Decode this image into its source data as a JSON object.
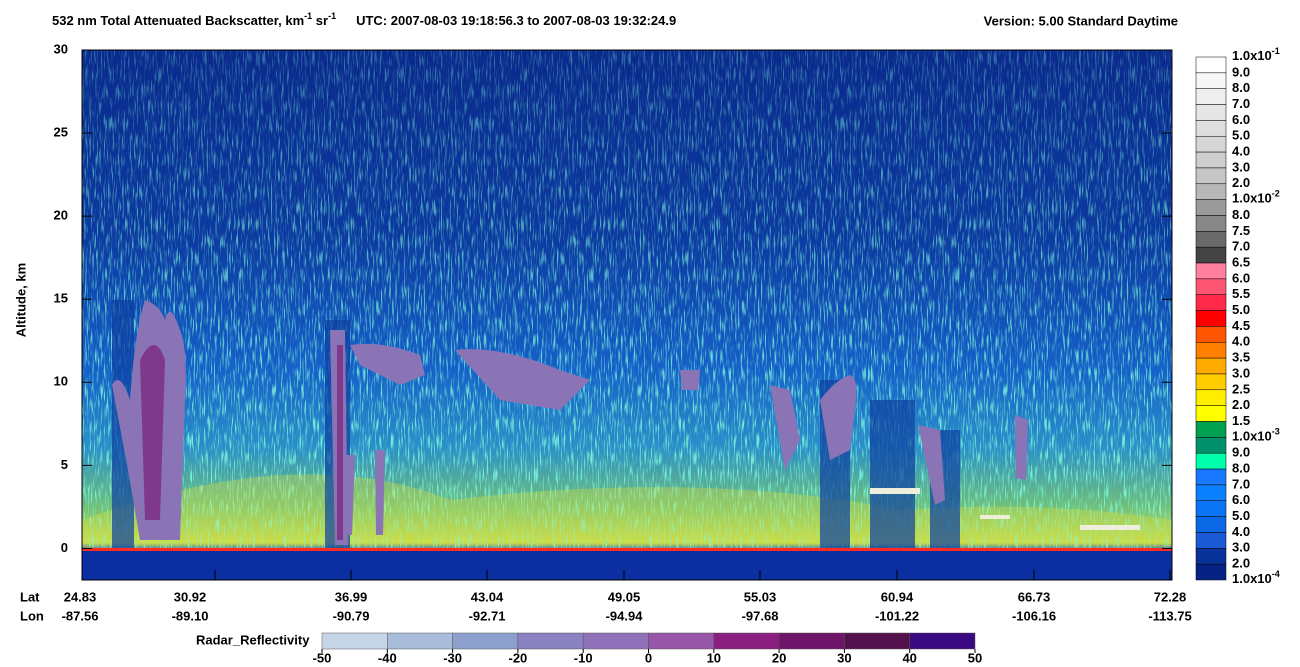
{
  "chart_data": {
    "type": "curtain",
    "title_parts": [
      "532 nm Total Attenuated Backscatter, km",
      "-1",
      " sr",
      "-1"
    ],
    "time_range": "UTC:  2007-08-03 19:18:56.3  to  2007-08-03 19:32:24.9",
    "version": "Version: 5.00  Standard  Daytime",
    "ylabel": "Altitude, km",
    "ylim": [
      -1.9,
      30
    ],
    "yticks": [
      0,
      5,
      10,
      15,
      20,
      25,
      30
    ],
    "row_names": [
      "Lat",
      "Lon"
    ],
    "lat": [
      "24.83",
      "30.92",
      "36.99",
      "43.04",
      "49.05",
      "55.03",
      "60.94",
      "66.73",
      "72.28"
    ],
    "lon": [
      "-87.56",
      "-89.10",
      "-90.79",
      "-92.71",
      "-94.94",
      "-97.68",
      "-101.22",
      "-106.16",
      "-113.75"
    ],
    "colorbar": {
      "labels": [
        {
          "mantissa": "1.0x10",
          "exponent": "-1"
        },
        "9.0",
        "8.0",
        "7.0",
        "6.0",
        "5.0",
        "4.0",
        "3.0",
        "2.0",
        {
          "mantissa": "1.0x10",
          "exponent": "-2"
        },
        "8.0",
        "7.5",
        "7.0",
        "6.5",
        "6.0",
        "5.5",
        "5.0",
        "4.5",
        "4.0",
        "3.5",
        "3.0",
        "2.5",
        "2.0",
        "1.5",
        {
          "mantissa": "1.0x10",
          "exponent": "-3"
        },
        "9.0",
        "8.0",
        "7.0",
        "6.0",
        "5.0",
        "4.0",
        "3.0",
        "2.0",
        {
          "mantissa": "1.0x10",
          "exponent": "-4"
        }
      ],
      "colors": [
        "#ffffff",
        "#f7f7f7",
        "#efefef",
        "#e6e6e6",
        "#dedede",
        "#d6d6d6",
        "#cecece",
        "#c6c6c6",
        "#b8b8b8",
        "#9a9a9a",
        "#888888",
        "#6a6a6a",
        "#444444",
        "#ff80a0",
        "#ff5575",
        "#ff2a4a",
        "#ff0000",
        "#ff5500",
        "#ff7f00",
        "#ffaa00",
        "#ffcc00",
        "#ffee00",
        "#ffff00",
        "#00a050",
        "#00906a",
        "#00ffaa",
        "#1a78ff",
        "#0a80ff",
        "#0a74f2",
        "#0a68e4",
        "#1a5ad4",
        "#0a3399",
        "#062283"
      ]
    },
    "radar_colorbar": {
      "label": "Radar_Reflectivity",
      "ticks": [
        -50,
        -40,
        -30,
        -20,
        -10,
        0,
        10,
        20,
        30,
        40,
        50
      ],
      "colors": [
        "#c6d6e8",
        "#a9bcd9",
        "#8d9fcc",
        "#8a82c1",
        "#9170ba",
        "#9856a9",
        "#8a1f80",
        "#6e1469",
        "#52104c",
        "#3a0a80"
      ]
    }
  }
}
